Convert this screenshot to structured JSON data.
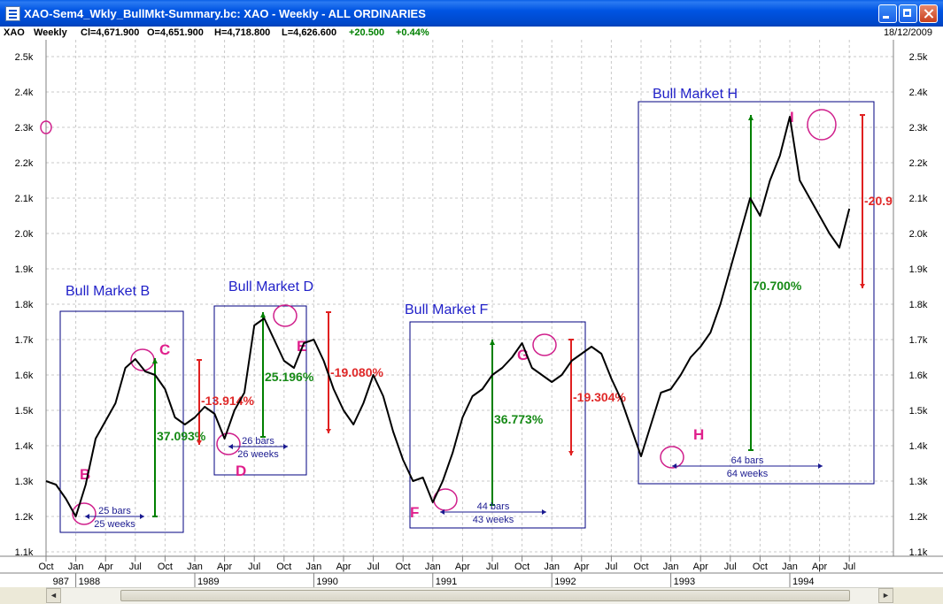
{
  "window": {
    "title": "XAO-Sem4_Wkly_BullMkt-Summary.bc: XAO - Weekly - ALL ORDINARIES"
  },
  "infobar": {
    "symbol": "XAO",
    "period": "Weekly",
    "close": "Cl=4,671.900",
    "open": "O=4,651.900",
    "high": "H=4,718.800",
    "low": "L=4,626.600",
    "change": "+20.500",
    "change_pct": "+0.44%",
    "date": "18/12/2009"
  },
  "chart_data": {
    "type": "line",
    "y_ticks": [
      "1.1k",
      "1.2k",
      "1.3k",
      "1.4k",
      "1.5k",
      "1.6k",
      "1.7k",
      "1.8k",
      "1.9k",
      "2.0k",
      "2.1k",
      "2.2k",
      "2.3k",
      "2.4k",
      "2.5k"
    ],
    "y_tick_values": [
      1100,
      1200,
      1300,
      1400,
      1500,
      1600,
      1700,
      1800,
      1900,
      2000,
      2100,
      2200,
      2300,
      2400,
      2500
    ],
    "ylim": [
      1100,
      2550
    ],
    "x_tick_labels": [
      "Oct",
      "Jan",
      "Apr",
      "Jul",
      "Oct",
      "Jan",
      "Apr",
      "Jul",
      "Oct",
      "Jan",
      "Apr",
      "Jul",
      "Oct",
      "Jan",
      "Apr",
      "Jul",
      "Oct",
      "Jan",
      "Apr",
      "Jul",
      "Oct",
      "Jan",
      "Apr",
      "Jul",
      "Oct",
      "Jan",
      "Apr",
      "Jul"
    ],
    "year_labels": [
      "987",
      "1988",
      "1989",
      "1990",
      "1991",
      "1992",
      "1993",
      "1994"
    ],
    "grid": true,
    "series": [
      {
        "x": [
          "1987-10",
          "1987-11",
          "1987-12",
          "1988-01",
          "1988-02",
          "1988-03",
          "1988-04",
          "1988-05",
          "1988-06",
          "1988-07",
          "1988-08",
          "1988-09",
          "1988-10",
          "1988-11",
          "1988-12",
          "1989-01",
          "1989-02",
          "1989-03",
          "1989-04",
          "1989-05",
          "1989-06",
          "1989-07",
          "1989-08",
          "1989-09",
          "1989-10",
          "1989-11",
          "1989-12",
          "1990-01",
          "1990-02",
          "1990-03",
          "1990-04",
          "1990-05",
          "1990-06",
          "1990-07",
          "1990-08",
          "1990-09",
          "1990-10",
          "1990-11",
          "1990-12",
          "1991-01",
          "1991-02",
          "1991-03",
          "1991-04",
          "1991-05",
          "1991-06",
          "1991-07",
          "1991-08",
          "1991-09",
          "1991-10",
          "1991-11",
          "1991-12",
          "1992-01",
          "1992-02",
          "1992-03",
          "1992-04",
          "1992-05",
          "1992-06",
          "1992-07",
          "1992-08",
          "1992-09",
          "1992-10",
          "1992-11",
          "1992-12",
          "1993-01",
          "1993-02",
          "1993-03",
          "1993-04",
          "1993-05",
          "1993-06",
          "1993-07",
          "1993-08",
          "1993-09",
          "1993-10",
          "1993-11",
          "1993-12",
          "1994-01",
          "1994-02",
          "1994-03",
          "1994-04",
          "1994-05",
          "1994-06",
          "1994-07"
        ],
        "values": [
          1300,
          1290,
          1250,
          1200,
          1290,
          1420,
          1470,
          1520,
          1620,
          1645,
          1610,
          1600,
          1560,
          1480,
          1460,
          1480,
          1510,
          1490,
          1420,
          1500,
          1550,
          1740,
          1760,
          1700,
          1640,
          1620,
          1690,
          1700,
          1640,
          1560,
          1500,
          1460,
          1520,
          1600,
          1540,
          1440,
          1360,
          1300,
          1310,
          1240,
          1300,
          1380,
          1480,
          1540,
          1560,
          1600,
          1620,
          1650,
          1690,
          1620,
          1600,
          1580,
          1600,
          1640,
          1660,
          1680,
          1660,
          1590,
          1530,
          1450,
          1370,
          1460,
          1550,
          1560,
          1600,
          1650,
          1680,
          1720,
          1800,
          1900,
          2000,
          2100,
          2050,
          2150,
          2220,
          2330,
          2150,
          2100,
          2050,
          2000,
          1960,
          2070
        ]
      }
    ],
    "annotations": {
      "boxes": [
        "Bull Market B",
        "Bull Market D",
        "Bull Market F",
        "Bull Market H"
      ],
      "points": [
        "B",
        "C",
        "D",
        "E",
        "F",
        "G",
        "H",
        "I"
      ],
      "rises": [
        "37.093%",
        "25.196%",
        "36.773%",
        "70.700%"
      ],
      "falls": [
        "-13.914%",
        "-19.080%",
        "-19.304%",
        "-20.9"
      ],
      "durations": [
        {
          "bars": "25 bars",
          "weeks": "25 weeks"
        },
        {
          "bars": "26 bars",
          "weeks": "26 weeks"
        },
        {
          "bars": "44 bars",
          "weeks": "43 weeks"
        },
        {
          "bars": "64 bars",
          "weeks": "64 weeks"
        }
      ]
    }
  }
}
